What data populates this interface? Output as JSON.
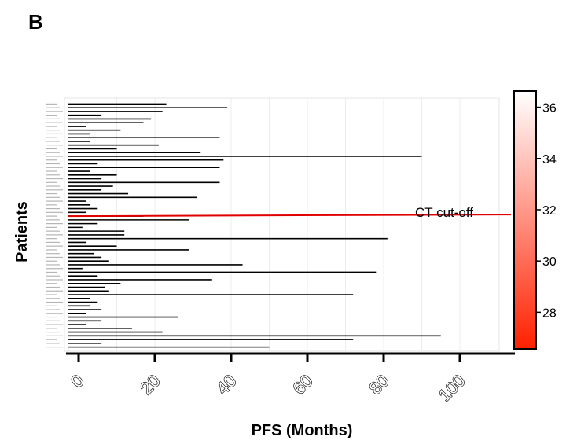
{
  "panel_label": "B",
  "chart_data": {
    "type": "bar",
    "orientation": "horizontal",
    "xlabel": "PFS (Months)",
    "ylabel": "Patients",
    "xlim": [
      -2,
      114
    ],
    "xticks": [
      0,
      20,
      40,
      60,
      80,
      100
    ],
    "tick_labels": [
      "0",
      "20",
      "40",
      "60",
      "80",
      "100"
    ],
    "grid": true,
    "bar_color": "#000000",
    "cutoff": {
      "label": "CT cut-off",
      "index": 30.5,
      "color": "#e00000"
    },
    "colorbar": {
      "range": [
        26.6,
        36.6
      ],
      "ticks": [
        28,
        30,
        32,
        34,
        36
      ],
      "tick_labels": [
        "28",
        "30",
        "32",
        "34",
        "36"
      ],
      "color_low": "#ff2000",
      "color_high": "#ffffff"
    },
    "values": [
      23,
      39,
      22,
      6,
      19,
      17,
      2,
      11,
      3,
      37,
      3,
      21,
      10,
      32,
      90,
      38,
      5,
      37,
      3,
      10,
      6,
      37,
      9,
      6,
      13,
      31,
      2,
      3,
      5,
      2,
      17,
      29,
      5,
      1,
      12,
      12,
      81,
      2,
      10,
      29,
      4,
      6,
      8,
      43,
      1,
      78,
      5,
      35,
      11,
      7,
      8,
      72,
      3,
      5,
      3,
      6,
      2,
      26,
      6,
      2,
      14,
      22,
      95,
      72,
      6,
      50
    ]
  }
}
